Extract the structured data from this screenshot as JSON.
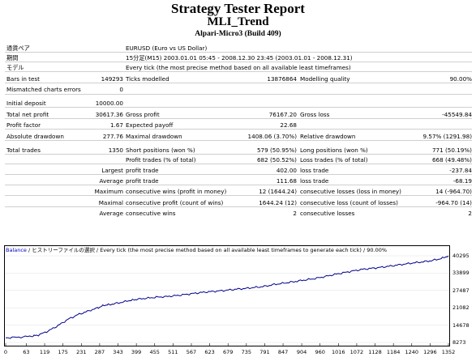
{
  "header": {
    "title": "Strategy Tester Report",
    "expert": "MLI_Trend",
    "server": "Alpari-Micro3 (Build 409)"
  },
  "info": {
    "symbol_label": "通貨ペア",
    "symbol": "EURUSD (Euro vs US Dollar)",
    "period_label": "期間",
    "period": "15分足(M15) 2003.01.01 05:45 - 2008.12.30 23:45 (2003.01.01 - 2008.12.31)",
    "model_label": "モデル",
    "model": "Every tick (the most precise method based on all available least timeframes)"
  },
  "stats": {
    "bars_label": "Bars in test",
    "bars": "149293",
    "ticks_label": "Ticks modelled",
    "ticks": "13876864",
    "quality_label": "Modelling quality",
    "quality": "90.00%",
    "mismatch_label": "Mismatched charts errors",
    "mismatch": "0",
    "deposit_label": "Initial deposit",
    "deposit": "10000.00",
    "net_label": "Total net profit",
    "net": "30617.36",
    "gross_profit_label": "Gross profit",
    "gross_profit": "76167.20",
    "gross_loss_label": "Gross loss",
    "gross_loss": "-45549.84",
    "pf_label": "Profit factor",
    "pf": "1.67",
    "payoff_label": "Expected payoff",
    "payoff": "22.68",
    "abs_dd_label": "Absolute drawdown",
    "abs_dd": "277.76",
    "max_dd_label": "Maximal drawdown",
    "max_dd": "1408.06 (3.70%)",
    "rel_dd_label": "Relative drawdown",
    "rel_dd": "9.57% (1291.98)",
    "trades_label": "Total trades",
    "trades": "1350",
    "short_label": "Short positions (won %)",
    "short": "579 (50.95%)",
    "long_label": "Long positions (won %)",
    "long": "771 (50.19%)",
    "pt_label": "Profit trades (% of total)",
    "pt": "682 (50.52%)",
    "lt_label": "Loss trades (% of total)",
    "lt": "668 (49.48%)",
    "largest_label": "Largest",
    "largest_profit_label": "profit trade",
    "largest_profit": "402.00",
    "largest_loss_label": "loss trade",
    "largest_loss": "-237.84",
    "average_label": "Average",
    "avg_profit_label": "profit trade",
    "avg_profit": "111.68",
    "avg_loss_label": "loss trade",
    "avg_loss": "-68.19",
    "maximum_label": "Maximum",
    "max_wins_label": "consecutive wins (profit in money)",
    "max_wins": "12 (1644.24)",
    "max_losses_label": "consecutive losses (loss in money)",
    "max_losses": "14 (-964.70)",
    "maximal_label": "Maximal",
    "maximal_profit_label": "consecutive profit (count of wins)",
    "maximal_profit": "1644.24 (12)",
    "maximal_loss_label": "consecutive loss (count of losses)",
    "maximal_loss": "-964.70 (14)",
    "average2_label": "Average",
    "avg_wins_label": "consecutive wins",
    "avg_wins": "2",
    "avg_losses_label": "consecutive losses",
    "avg_losses": "2"
  },
  "chart_data": {
    "type": "line",
    "legend_balance": "Balance",
    "legend_rest": " / ヒストリーファイルの選択 / Every tick (the most precise method based on all available least timeframes to generate each tick) / 90.00%",
    "y_ticks": [
      "40295",
      "33899",
      "27487",
      "21082",
      "14678",
      "8273"
    ],
    "x_ticks": [
      "0",
      "63",
      "119",
      "175",
      "231",
      "287",
      "343",
      "399",
      "455",
      "511",
      "567",
      "623",
      "679",
      "735",
      "791",
      "847",
      "904",
      "960",
      "1016",
      "1072",
      "1128",
      "1184",
      "1240",
      "1296",
      "1352"
    ],
    "ylim": [
      8273,
      40295
    ],
    "xlim": [
      0,
      1352
    ],
    "line_color": "#00008b",
    "series": [
      {
        "x": [
          0,
          40,
          80,
          100,
          130,
          160,
          190,
          220,
          250,
          280,
          300,
          320,
          350,
          380,
          400,
          430,
          460,
          490,
          520,
          550,
          580,
          610,
          640,
          670,
          700,
          730,
          760,
          790,
          820,
          850,
          880,
          910,
          940,
          970,
          1000,
          1030,
          1060,
          1090,
          1120,
          1150,
          1180,
          1210,
          1240,
          1270,
          1300,
          1330,
          1352
        ],
        "values": [
          10000,
          10200,
          10600,
          11000,
          12500,
          14500,
          16800,
          18500,
          19800,
          21000,
          22000,
          22300,
          23000,
          23800,
          24200,
          24600,
          25000,
          25200,
          25600,
          26000,
          26500,
          26900,
          27200,
          27500,
          27900,
          28200,
          28600,
          29000,
          29700,
          30200,
          30700,
          31300,
          31800,
          32500,
          33300,
          34000,
          34700,
          35300,
          35700,
          36100,
          36600,
          37100,
          37600,
          38000,
          38500,
          39300,
          40295
        ]
      }
    ]
  }
}
